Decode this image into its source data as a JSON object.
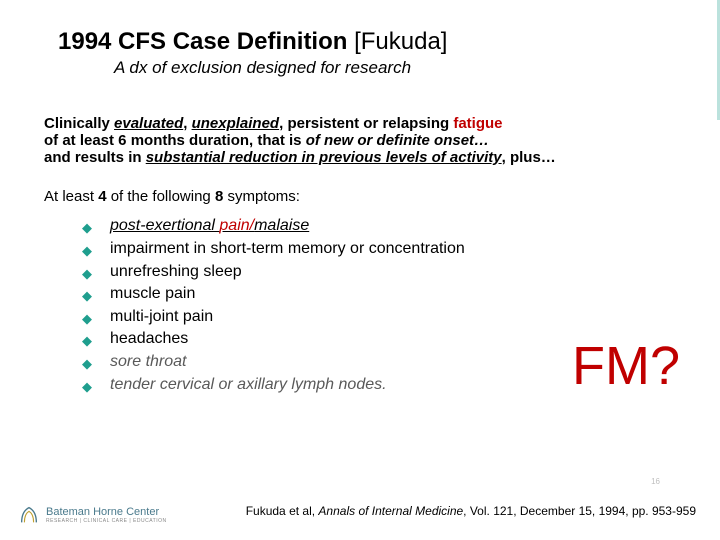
{
  "title": {
    "bold": "1994  CFS Case Definition",
    "normal": " [Fukuda]"
  },
  "subtitle": "A dx of exclusion designed for research",
  "para": {
    "t1": "Clinically ",
    "eval": "evaluated",
    "t2": ", ",
    "unexp": "unexplained",
    "t3": ", persistent or relapsing ",
    "fatigue": "fatigue",
    "t4": " of at least 6 months duration, that is ",
    "ital": "of new or definite onset…",
    "t5": " and results in ",
    "subred": "substantial reduction in previous levels of activity",
    "t6": ", plus…"
  },
  "atleast": {
    "a": "At least ",
    "b": "4",
    "c": " of the following ",
    "d": "8",
    "e": " symptoms:"
  },
  "bullets": [
    {
      "kind": "pem",
      "pre": "post-exertional ",
      "pain": "pain/",
      "post": "malaise"
    },
    {
      "kind": "black1",
      "text": "impairment in short-term memory or concentration"
    },
    {
      "kind": "black1",
      "text": "unrefreshing sleep"
    },
    {
      "kind": "black2",
      "text": "muscle pain"
    },
    {
      "kind": "black2",
      "text": "multi-joint pain"
    },
    {
      "kind": "black2",
      "text": "headaches"
    },
    {
      "kind": "gray",
      "text": "sore throat"
    },
    {
      "kind": "gray",
      "text": "tender cervical or axillary lymph nodes."
    }
  ],
  "fm": "FM?",
  "pagenum": "16",
  "citation": {
    "a": "Fukuda et al, ",
    "j": "Annals of Internal Medicine",
    "b": ", Vol. 121, December 15, 1994, pp. 953-959"
  },
  "logo": {
    "name": "Bateman Horne Center",
    "sub": "RESEARCH | CLINICAL CARE | EDUCATION"
  },
  "colors": {
    "accent": "#1f9e8e",
    "red": "#c00000",
    "gray": "#595959"
  }
}
